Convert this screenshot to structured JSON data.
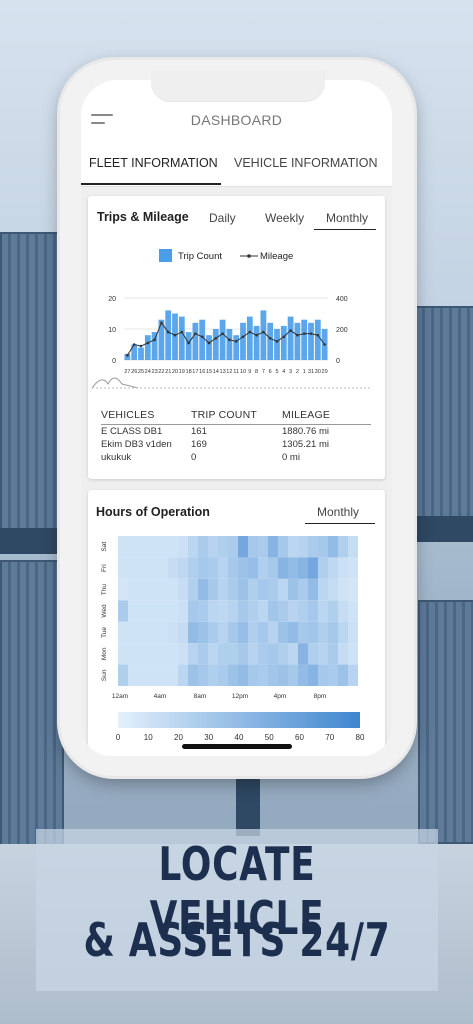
{
  "app": {
    "title": "DASHBOARD",
    "tabs": [
      {
        "label": "FLEET INFORMATION",
        "active": true
      },
      {
        "label": "VEHICLE INFORMATION",
        "active": false
      }
    ]
  },
  "trips_card": {
    "title": "Trips & Mileage",
    "periods": [
      "Daily",
      "Weekly",
      "Monthly"
    ],
    "selected_period": "Monthly",
    "legend": {
      "bar": "Trip Count",
      "line": "Mileage"
    },
    "table": {
      "headers": [
        "VEHICLES",
        "TRIP COUNT",
        "MILEAGE"
      ],
      "rows": [
        [
          "E CLASS DB1",
          "161",
          "1880.76 mi"
        ],
        [
          "Ekim DB3 v1den",
          "169",
          "1305.21 mi"
        ],
        [
          "ukukuk",
          "0",
          "0 mi"
        ]
      ]
    }
  },
  "hours_card": {
    "title": "Hours of Operation",
    "selected_period": "Monthly"
  },
  "tagline": {
    "line1": "LOCATE VEHICLE",
    "line2": "& ASSETS 24/7"
  },
  "colors": {
    "bar": "#4a9de9",
    "line": "#333333",
    "heat_low": "#e4f0fb",
    "heat_high": "#3f86cf",
    "tagline": "#1c2f4f"
  },
  "chart_data": [
    {
      "type": "bar",
      "title": "",
      "categories": [
        "27",
        "26",
        "25",
        "24",
        "23",
        "22",
        "21",
        "20",
        "19",
        "18",
        "17",
        "16",
        "15",
        "14",
        "13",
        "12",
        "11",
        "10",
        "9",
        "8",
        "7",
        "6",
        "5",
        "4",
        "3",
        "2",
        "1",
        "31",
        "30",
        "29"
      ],
      "y_left_ticks": [
        0,
        10,
        20
      ],
      "y_right_ticks": [
        0,
        200,
        400
      ],
      "ylim": [
        0,
        20
      ],
      "y2lim": [
        0,
        400
      ],
      "series": [
        {
          "name": "Trip Count",
          "type": "bar",
          "axis": "left",
          "values": [
            2,
            5,
            4,
            8,
            9,
            13,
            16,
            15,
            14,
            9,
            12,
            13,
            8,
            10,
            13,
            10,
            8,
            12,
            14,
            11,
            16,
            12,
            10,
            11,
            14,
            12,
            13,
            12,
            13,
            10
          ]
        },
        {
          "name": "Mileage",
          "type": "line",
          "axis": "right",
          "values": [
            30,
            100,
            90,
            110,
            130,
            240,
            180,
            160,
            180,
            110,
            170,
            150,
            110,
            140,
            170,
            130,
            120,
            150,
            180,
            160,
            180,
            140,
            120,
            150,
            190,
            160,
            170,
            170,
            160,
            100
          ]
        }
      ],
      "grid": true,
      "legend_position": "top"
    },
    {
      "type": "heatmap",
      "title": "",
      "y_categories": [
        "Sat",
        "Fri",
        "Thu",
        "Wed",
        "Tue",
        "Mon",
        "Sun"
      ],
      "x_tick_labels": [
        "12am",
        "4am",
        "8am",
        "12pm",
        "4pm",
        "8pm"
      ],
      "columns": 24,
      "scale": [
        0,
        80
      ],
      "scale_ticks": [
        0,
        10,
        20,
        30,
        40,
        50,
        60,
        70,
        80
      ],
      "values": [
        [
          10,
          10,
          10,
          10,
          10,
          10,
          12,
          20,
          28,
          22,
          25,
          28,
          55,
          30,
          28,
          45,
          30,
          20,
          22,
          28,
          30,
          40,
          25,
          15
        ],
        [
          10,
          10,
          10,
          10,
          10,
          15,
          18,
          25,
          30,
          28,
          22,
          30,
          35,
          38,
          25,
          30,
          45,
          40,
          45,
          55,
          25,
          18,
          12,
          10
        ],
        [
          8,
          10,
          10,
          10,
          10,
          10,
          14,
          25,
          40,
          30,
          22,
          28,
          35,
          25,
          30,
          28,
          20,
          35,
          28,
          40,
          20,
          15,
          10,
          8
        ],
        [
          28,
          10,
          10,
          10,
          10,
          10,
          12,
          30,
          28,
          20,
          18,
          22,
          30,
          25,
          20,
          32,
          28,
          22,
          25,
          30,
          20,
          25,
          15,
          10
        ],
        [
          10,
          10,
          10,
          10,
          10,
          12,
          15,
          40,
          35,
          28,
          22,
          30,
          38,
          25,
          30,
          22,
          35,
          40,
          30,
          32,
          25,
          30,
          20,
          12
        ],
        [
          10,
          10,
          10,
          10,
          10,
          10,
          12,
          22,
          28,
          20,
          25,
          25,
          30,
          22,
          28,
          30,
          25,
          20,
          45,
          25,
          22,
          28,
          15,
          10
        ],
        [
          25,
          10,
          10,
          10,
          10,
          10,
          20,
          35,
          30,
          25,
          28,
          35,
          40,
          30,
          28,
          32,
          35,
          30,
          40,
          45,
          30,
          28,
          35,
          22
        ]
      ]
    }
  ]
}
